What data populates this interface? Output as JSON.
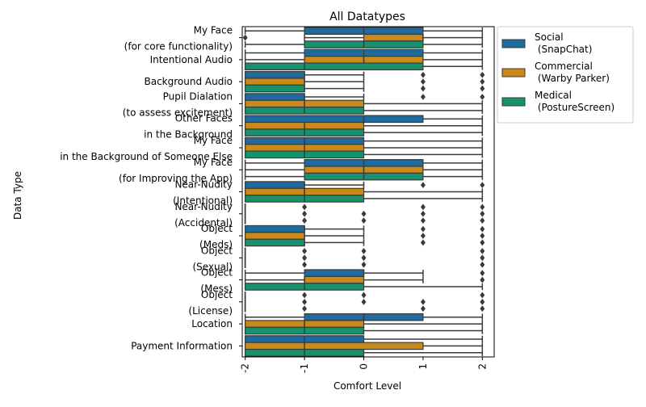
{
  "chart_data": {
    "type": "box",
    "orientation": "horizontal",
    "title": "All Datatypes",
    "xlabel": "Comfort Level",
    "ylabel": "Data Type",
    "xlim": [
      -2.05,
      2.2
    ],
    "xticks": [
      -2,
      -1,
      0,
      1,
      2
    ],
    "xtick_labels": [
      "-2",
      "-1",
      "0",
      "1",
      "2"
    ],
    "xtick_rotation": 90,
    "grid": false,
    "legend_position": "outside-top-right",
    "categories": [
      "My Face\n(for core functionality)",
      "Intentional Audio",
      "Background Audio",
      "Pupil Dialation\n(to assess excitement)",
      "Other Faces\nin the Background",
      "My Face\nin the Background of Someone Else",
      "My Face\n(for Improving the App)",
      "Near-Nudity\n(Intentional)",
      "Near-Nudity\n(Accidental)",
      "Object\n(Meds)",
      "Object\n(Sexual)",
      "Object\n(Mess)",
      "Object\n(License)",
      "Location",
      "Payment Information"
    ],
    "series": [
      {
        "name": "Social\n (SnapChat)",
        "color": "#1f6b9e",
        "boxes": [
          {
            "whislo": -2,
            "q1": -1,
            "med": 0,
            "q3": 1,
            "whishi": 2,
            "fliers": []
          },
          {
            "whislo": -2,
            "q1": -1,
            "med": 0,
            "q3": 1,
            "whishi": 2,
            "fliers": []
          },
          {
            "whislo": -2,
            "q1": -2,
            "med": -1,
            "q3": -1,
            "whishi": 0,
            "fliers": [
              1,
              2
            ]
          },
          {
            "whislo": -2,
            "q1": -2,
            "med": -1,
            "q3": -1,
            "whishi": 0,
            "fliers": [
              1,
              2
            ]
          },
          {
            "whislo": -2,
            "q1": -2,
            "med": 0,
            "q3": 1,
            "whishi": 2,
            "fliers": []
          },
          {
            "whislo": -2,
            "q1": -2,
            "med": -1,
            "q3": 0,
            "whishi": 2,
            "fliers": []
          },
          {
            "whislo": -2,
            "q1": -1,
            "med": 0,
            "q3": 1,
            "whishi": 2,
            "fliers": []
          },
          {
            "whislo": -2,
            "q1": -2,
            "med": -1,
            "q3": -1,
            "whishi": 0,
            "fliers": [
              1,
              2
            ]
          },
          {
            "whislo": -2,
            "q1": -2,
            "med": -2,
            "q3": -2,
            "whishi": -2,
            "fliers": [
              -1,
              1,
              2
            ]
          },
          {
            "whislo": -2,
            "q1": -2,
            "med": -1,
            "q3": -1,
            "whishi": 0,
            "fliers": [
              1,
              2
            ]
          },
          {
            "whislo": -2,
            "q1": -2,
            "med": -2,
            "q3": -2,
            "whishi": -2,
            "fliers": [
              -1,
              0,
              2
            ]
          },
          {
            "whislo": -2,
            "q1": -1,
            "med": 0,
            "q3": 0,
            "whishi": 1,
            "fliers": [
              2
            ]
          },
          {
            "whislo": -2,
            "q1": -2,
            "med": -2,
            "q3": -2,
            "whishi": -2,
            "fliers": [
              -1,
              0,
              2
            ]
          },
          {
            "whislo": -2,
            "q1": -1,
            "med": 0,
            "q3": 1,
            "whishi": 2,
            "fliers": []
          },
          {
            "whislo": -2,
            "q1": -2,
            "med": -1,
            "q3": 0,
            "whishi": 2,
            "fliers": []
          }
        ]
      },
      {
        "name": "Commercial\n (Warby Parker)",
        "color": "#c98a19",
        "boxes": [
          {
            "whislo": -1,
            "q1": 0,
            "med": 1,
            "q3": 1,
            "whishi": 2,
            "fliers": [
              -2
            ]
          },
          {
            "whislo": -2,
            "q1": -1,
            "med": 0,
            "q3": 1,
            "whishi": 2,
            "fliers": []
          },
          {
            "whislo": -2,
            "q1": -2,
            "med": -1,
            "q3": -1,
            "whishi": 0,
            "fliers": [
              1,
              2
            ]
          },
          {
            "whislo": -2,
            "q1": -2,
            "med": -1,
            "q3": 0,
            "whishi": 2,
            "fliers": []
          },
          {
            "whislo": -2,
            "q1": -2,
            "med": -1,
            "q3": 0,
            "whishi": 2,
            "fliers": []
          },
          {
            "whislo": -2,
            "q1": -2,
            "med": -1,
            "q3": 0,
            "whishi": 2,
            "fliers": []
          },
          {
            "whislo": -2,
            "q1": -1,
            "med": 0,
            "q3": 1,
            "whishi": 2,
            "fliers": []
          },
          {
            "whislo": -2,
            "q1": -2,
            "med": -1,
            "q3": 0,
            "whishi": 2,
            "fliers": []
          },
          {
            "whislo": -2,
            "q1": -2,
            "med": -2,
            "q3": -2,
            "whishi": -2,
            "fliers": [
              -1,
              0,
              1,
              2
            ]
          },
          {
            "whislo": -2,
            "q1": -2,
            "med": -1,
            "q3": -1,
            "whishi": 0,
            "fliers": [
              1,
              2
            ]
          },
          {
            "whislo": -2,
            "q1": -2,
            "med": -2,
            "q3": -2,
            "whishi": -2,
            "fliers": [
              -1,
              0,
              2
            ]
          },
          {
            "whislo": -2,
            "q1": -1,
            "med": -1,
            "q3": 0,
            "whishi": 1,
            "fliers": [
              2
            ]
          },
          {
            "whislo": -2,
            "q1": -2,
            "med": -2,
            "q3": -2,
            "whishi": -2,
            "fliers": [
              -1,
              0,
              1,
              2
            ]
          },
          {
            "whislo": -2,
            "q1": -2,
            "med": -1,
            "q3": 0,
            "whishi": 2,
            "fliers": []
          },
          {
            "whislo": -2,
            "q1": -2,
            "med": -1,
            "q3": 1,
            "whishi": 2,
            "fliers": []
          }
        ]
      },
      {
        "name": "Medical\n (PostureScreen)",
        "color": "#16926e",
        "boxes": [
          {
            "whislo": -2,
            "q1": -1,
            "med": 0,
            "q3": 1,
            "whishi": 2,
            "fliers": []
          },
          {
            "whislo": -2,
            "q1": -2,
            "med": -1,
            "q3": 1,
            "whishi": 2,
            "fliers": []
          },
          {
            "whislo": -2,
            "q1": -2,
            "med": -1,
            "q3": -1,
            "whishi": 0,
            "fliers": [
              1,
              2
            ]
          },
          {
            "whislo": -2,
            "q1": -2,
            "med": -1,
            "q3": 0,
            "whishi": 2,
            "fliers": []
          },
          {
            "whislo": -2,
            "q1": -2,
            "med": -1,
            "q3": 0,
            "whishi": 2,
            "fliers": []
          },
          {
            "whislo": -2,
            "q1": -2,
            "med": -1,
            "q3": 0,
            "whishi": 2,
            "fliers": []
          },
          {
            "whislo": -2,
            "q1": -1,
            "med": 0,
            "q3": 1,
            "whishi": 2,
            "fliers": []
          },
          {
            "whislo": -2,
            "q1": -2,
            "med": -1,
            "q3": 0,
            "whishi": 2,
            "fliers": []
          },
          {
            "whislo": -2,
            "q1": -2,
            "med": -2,
            "q3": -2,
            "whishi": -2,
            "fliers": [
              -1,
              0,
              1,
              2
            ]
          },
          {
            "whislo": -2,
            "q1": -2,
            "med": -1,
            "q3": -1,
            "whishi": 0,
            "fliers": [
              1,
              2
            ]
          },
          {
            "whislo": -2,
            "q1": -2,
            "med": -2,
            "q3": -2,
            "whishi": -2,
            "fliers": [
              -1,
              0,
              2
            ]
          },
          {
            "whislo": -2,
            "q1": -2,
            "med": -1,
            "q3": 0,
            "whishi": 2,
            "fliers": []
          },
          {
            "whislo": -2,
            "q1": -2,
            "med": -2,
            "q3": -2,
            "whishi": -2,
            "fliers": [
              -1,
              1,
              2
            ]
          },
          {
            "whislo": -2,
            "q1": -2,
            "med": -1,
            "q3": 0,
            "whishi": 2,
            "fliers": []
          },
          {
            "whislo": -2,
            "q1": -2,
            "med": -1,
            "q3": 0,
            "whishi": 2,
            "fliers": []
          }
        ]
      }
    ]
  }
}
